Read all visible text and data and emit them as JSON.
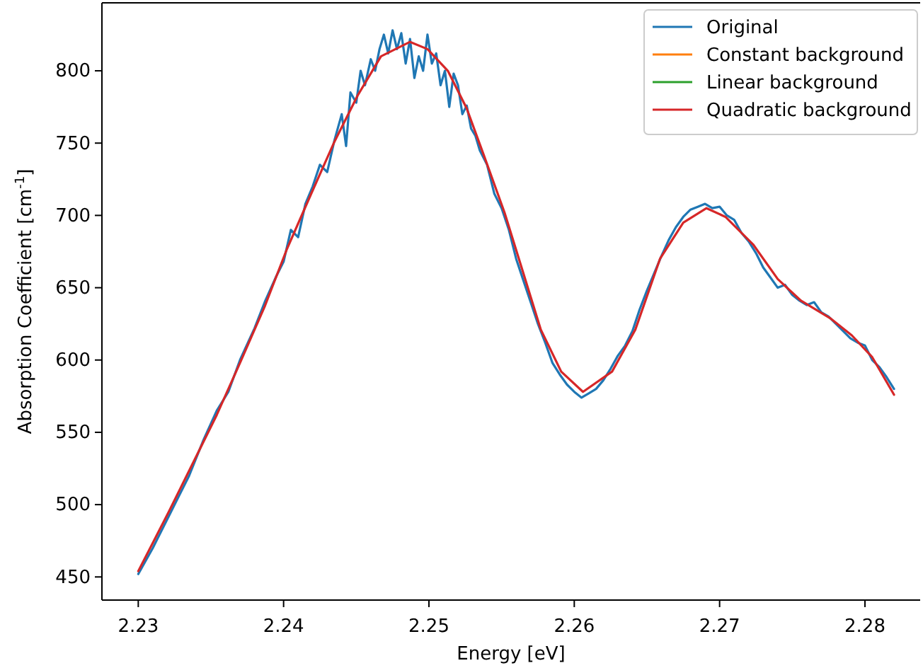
{
  "chart_data": {
    "type": "line",
    "xlabel": "Energy [eV]",
    "ylabel": "Absorption Coefficient [cm$^{-1}$]",
    "xlim": [
      2.2275,
      2.2838
    ],
    "xticks": [
      2.23,
      2.24,
      2.25,
      2.26,
      2.27,
      2.28
    ],
    "ylim": [
      434,
      847
    ],
    "yticks": [
      450,
      500,
      550,
      600,
      650,
      700,
      750,
      800
    ],
    "grid": false,
    "legend": "top right",
    "line_style": "solid",
    "marker": "none",
    "series": [
      {
        "name": "Original",
        "color": "#1f77b4",
        "x": [
          2.23,
          2.231,
          2.2321,
          2.2335,
          2.2345,
          2.2354,
          2.2362,
          2.237,
          2.238,
          2.2387,
          2.2395,
          2.24,
          2.2405,
          2.241,
          2.2415,
          2.242,
          2.2425,
          2.243,
          2.2435,
          2.244,
          2.2443,
          2.2446,
          2.245,
          2.2453,
          2.2456,
          2.246,
          2.2463,
          2.2466,
          2.2469,
          2.2472,
          2.2475,
          2.2478,
          2.2481,
          2.2484,
          2.2487,
          2.249,
          2.2493,
          2.2496,
          2.2499,
          2.2502,
          2.2505,
          2.2508,
          2.2511,
          2.2514,
          2.2517,
          2.252,
          2.2523,
          2.2526,
          2.2529,
          2.2532,
          2.2535,
          2.254,
          2.2545,
          2.255,
          2.2555,
          2.256,
          2.2565,
          2.257,
          2.2575,
          2.258,
          2.2585,
          2.259,
          2.2595,
          2.26,
          2.2605,
          2.261,
          2.2615,
          2.262,
          2.2625,
          2.263,
          2.2635,
          2.264,
          2.2645,
          2.265,
          2.2655,
          2.266,
          2.2665,
          2.267,
          2.2675,
          2.268,
          2.2685,
          2.269,
          2.2695,
          2.27,
          2.2705,
          2.271,
          2.2715,
          2.272,
          2.2725,
          2.273,
          2.2735,
          2.274,
          2.2745,
          2.275,
          2.2755,
          2.276,
          2.2765,
          2.277,
          2.2775,
          2.278,
          2.2785,
          2.279,
          2.2795,
          2.28,
          2.2805,
          2.281,
          2.2815,
          2.282
        ],
        "values": [
          452,
          470,
          492,
          520,
          545,
          565,
          578,
          600,
          622,
          640,
          658,
          668,
          690,
          685,
          708,
          720,
          735,
          730,
          752,
          770,
          748,
          785,
          778,
          800,
          790,
          808,
          800,
          815,
          825,
          812,
          828,
          815,
          826,
          805,
          822,
          795,
          810,
          800,
          825,
          805,
          812,
          790,
          800,
          775,
          798,
          790,
          770,
          776,
          760,
          755,
          745,
          735,
          715,
          705,
          690,
          670,
          655,
          640,
          625,
          612,
          598,
          590,
          583,
          578,
          574,
          577,
          580,
          586,
          594,
          603,
          610,
          620,
          635,
          648,
          660,
          672,
          683,
          692,
          699,
          704,
          706,
          708,
          705,
          706,
          700,
          697,
          688,
          682,
          674,
          664,
          657,
          650,
          652,
          645,
          641,
          638,
          640,
          633,
          630,
          625,
          620,
          615,
          612,
          610,
          600,
          595,
          588,
          580
        ]
      },
      {
        "name": "Constant background",
        "color": "#ff7f0e"
      },
      {
        "name": "Linear background",
        "color": "#2ca02c"
      },
      {
        "name": "Quadratic background",
        "color": "#d62728",
        "x": [
          2.23,
          2.2321,
          2.2354,
          2.237,
          2.2387,
          2.2402,
          2.2419,
          2.2435,
          2.2451,
          2.2467,
          2.2487,
          2.2499,
          2.2513,
          2.2526,
          2.2538,
          2.2552,
          2.2565,
          2.2577,
          2.2591,
          2.2606,
          2.2626,
          2.2642,
          2.2659,
          2.2675,
          2.2691,
          2.2704,
          2.2723,
          2.274,
          2.2756,
          2.2776,
          2.2791,
          2.2805,
          2.282
        ],
        "values": [
          454,
          495,
          562,
          598,
          637,
          676,
          715,
          751,
          783,
          810,
          820,
          815,
          800,
          774,
          741,
          702,
          660,
          621,
          592,
          578,
          592,
          621,
          670,
          695,
          705,
          699,
          680,
          656,
          641,
          629,
          617,
          602,
          576
        ]
      }
    ]
  }
}
